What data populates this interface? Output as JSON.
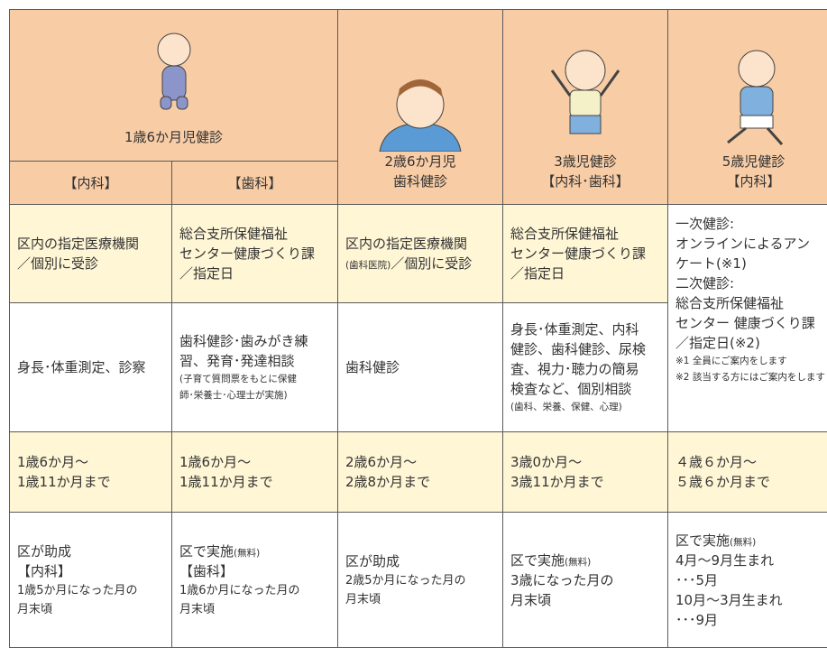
{
  "header": {
    "group_1": "1歳6か月児健診",
    "group_1_sub": [
      "【内科】",
      "【歯科】"
    ],
    "columns": [
      [
        "2歳6か月児",
        "歯科健診"
      ],
      [
        "3歳児健診",
        "【内科･歯科】"
      ],
      [
        "5歳児健診",
        "【内科】"
      ]
    ]
  },
  "rows": [
    [
      [
        "区内の指定医療機関",
        "／個別に受診"
      ],
      [
        "総合支所保健福祉",
        "センター健康づくり課",
        "／指定日"
      ],
      [
        "区内の指定医療機関",
        [
          "(歯科医院)",
          "／個別に受診"
        ]
      ],
      [
        "総合支所保健福祉",
        "センター健康づくり課",
        "／指定日"
      ],
      [
        "一次健診:",
        "オンラインによるアン",
        "ケート(※1)",
        "二次健診:",
        "総合支所保健福祉",
        "センター 健康づくり課",
        "／指定日(※2)",
        "※1 全員にご案内をします",
        "※2 該当する方にはご案内をします"
      ]
    ],
    [
      [
        "身長･体重測定、診察"
      ],
      [
        "歯科健診･歯みがき練",
        "習、発育･発達相談",
        "(子育て質問票をもとに保健",
        "師･栄養士･心理士が実施)"
      ],
      [
        "歯科健診"
      ],
      [
        "身長･体重測定、内科",
        "健診、歯科健診、尿検",
        "査、視力･聴力の簡易",
        "検査など、個別相談",
        "(歯科、栄養、保健、心理)"
      ]
    ],
    [
      [
        "1歳6か月～",
        "1歳11か月まで"
      ],
      [
        "1歳6か月～",
        "1歳11か月まで"
      ],
      [
        "2歳6か月～",
        "2歳8か月まで"
      ],
      [
        "3歳0か月～",
        "3歳11か月まで"
      ],
      [
        "４歳６か月～",
        "５歳６か月まで"
      ]
    ],
    [
      [
        "区が助成",
        "【内科】",
        "1歳5か月になった月の",
        "月末頃"
      ],
      [
        [
          "区で実施",
          "(無料)"
        ],
        "【歯科】",
        "1歳6か月になった月の",
        "月末頃"
      ],
      [
        "区が助成",
        "2歳5か月になった月の",
        "月末頃"
      ],
      [
        [
          "区で実施",
          "(無料)"
        ],
        "3歳になった月の",
        "月末頃"
      ],
      [
        [
          "区で実施",
          "(無料)"
        ],
        "4月～9月生まれ",
        "･･･5月",
        "10月～3月生まれ",
        "･･･9月"
      ]
    ]
  ]
}
